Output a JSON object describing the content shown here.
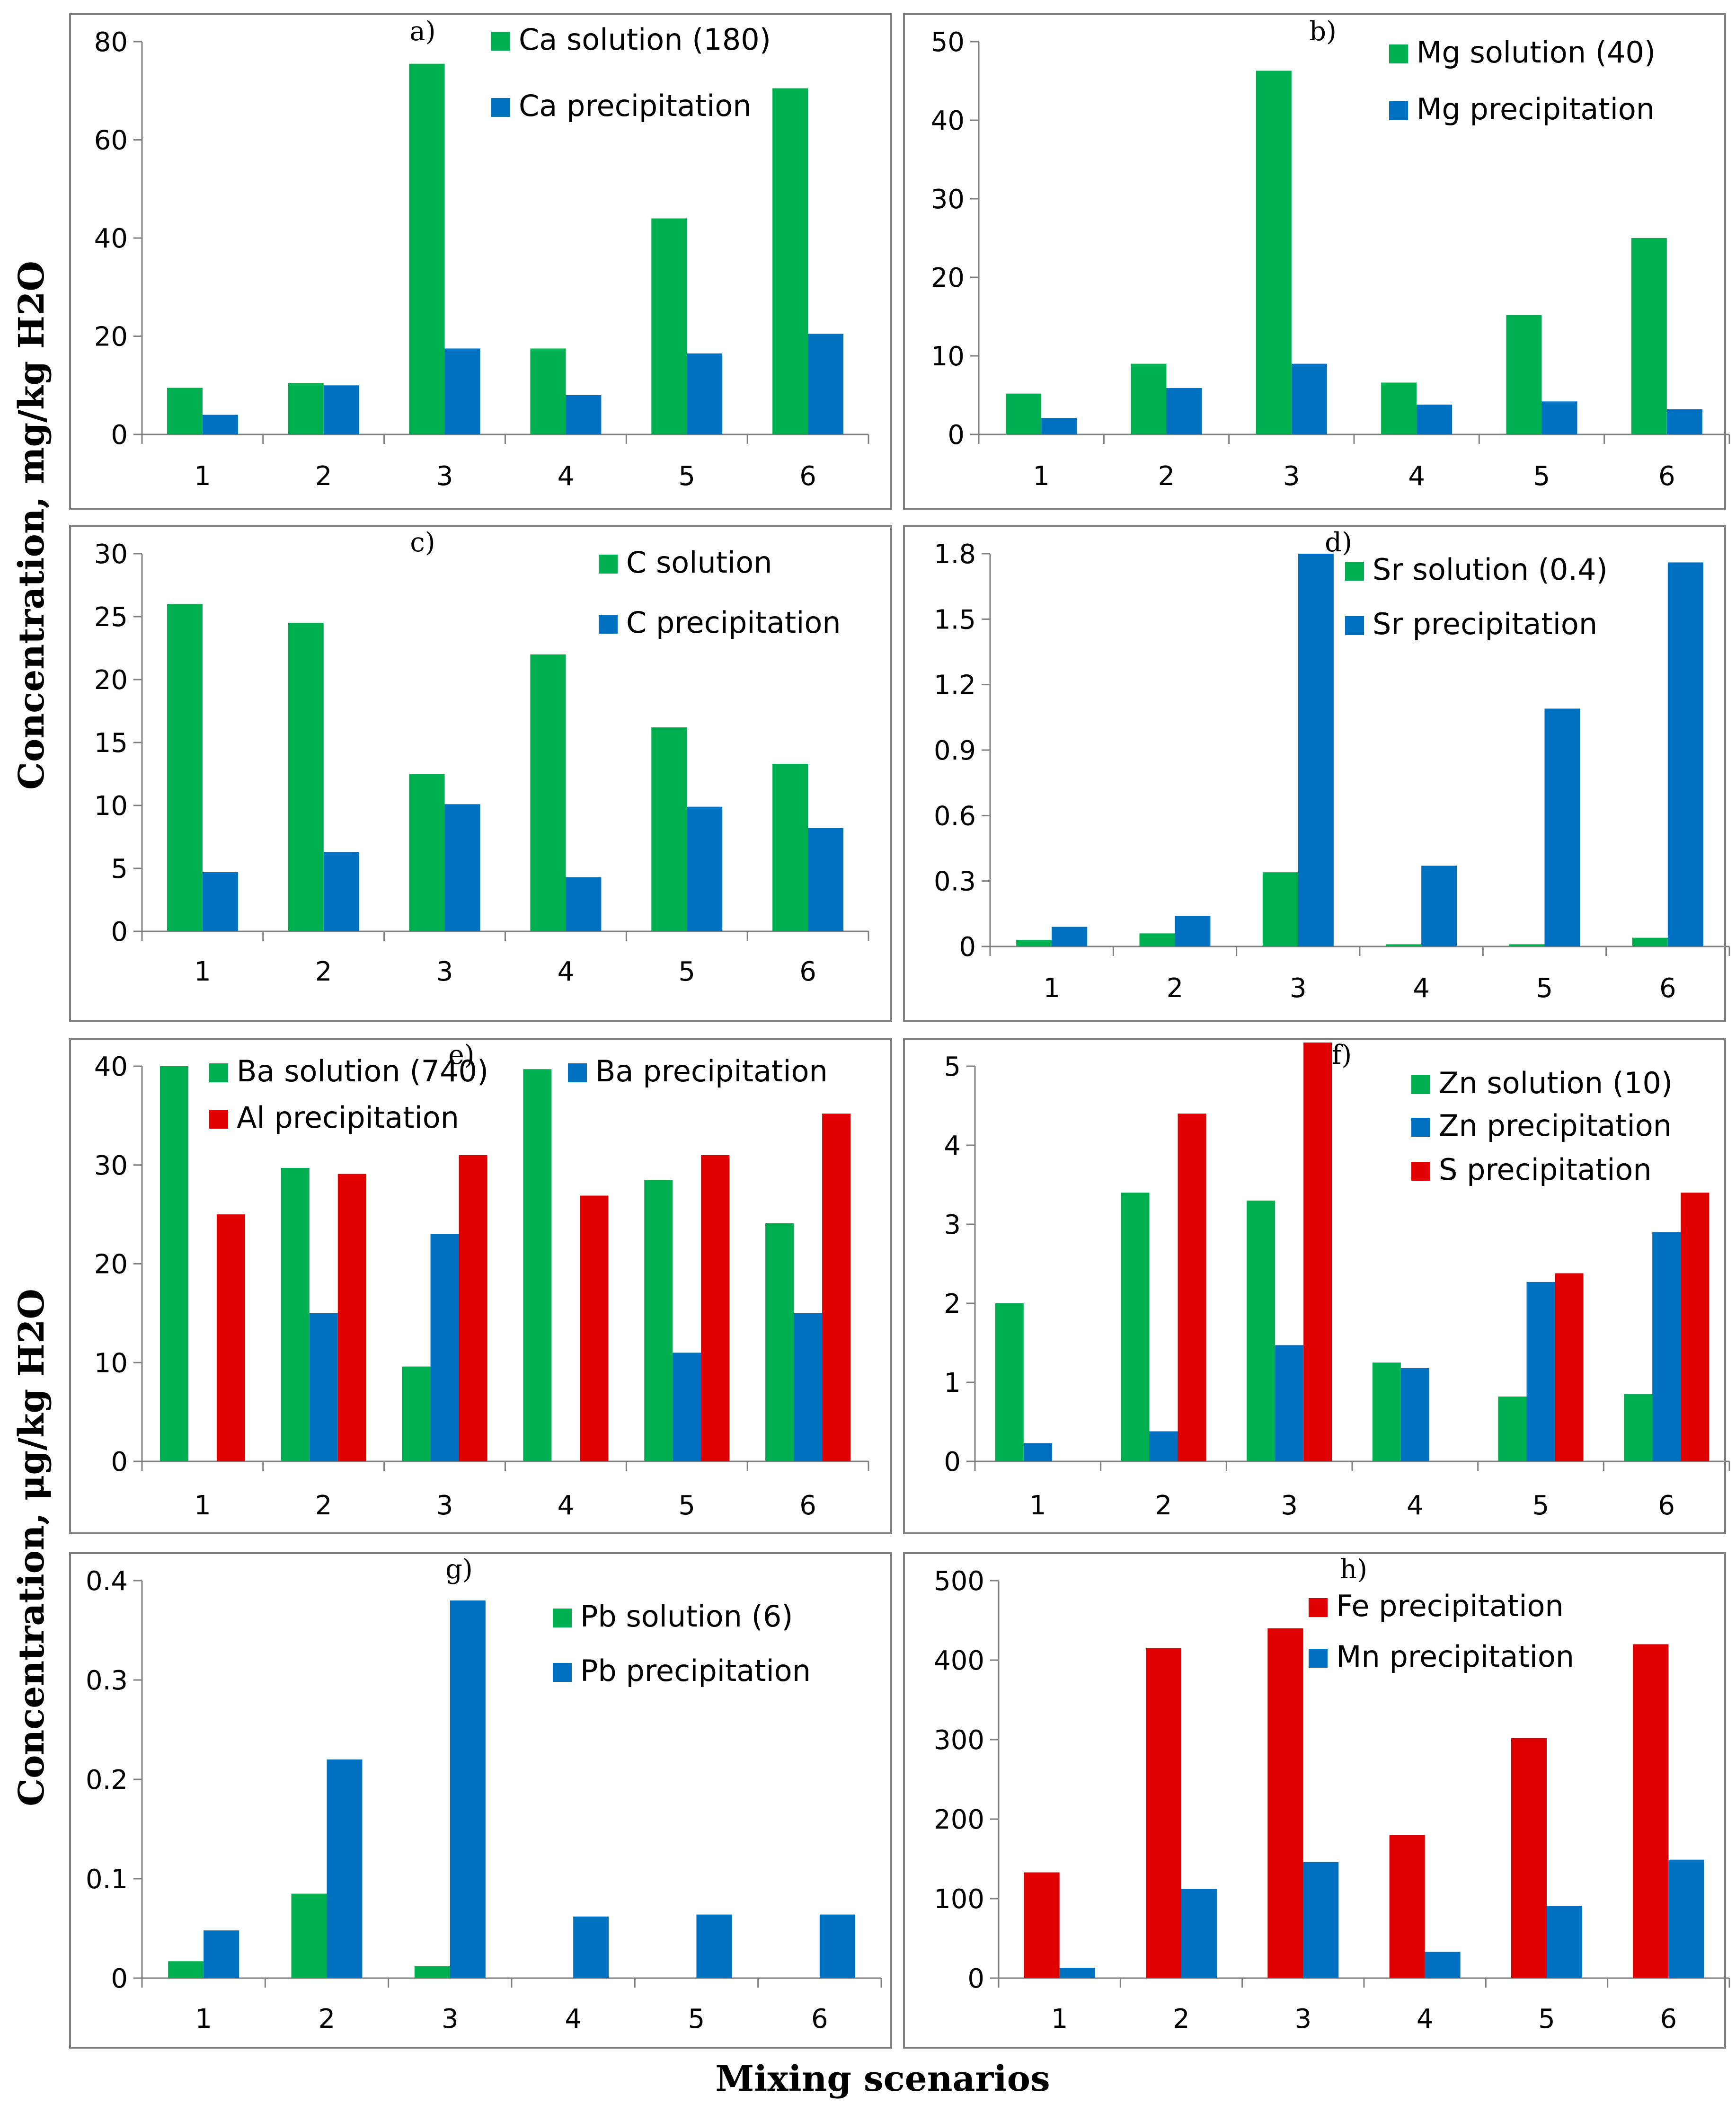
{
  "figure": {
    "ylabel_top": "Concentration, mg/kg H2O",
    "ylabel_bottom": "Concentration, μg/kg H2O",
    "xlabel": "Mixing scenarios"
  },
  "colors": {
    "green": "#00b050",
    "blue": "#0070c0",
    "red": "#e00000"
  },
  "chart_data": [
    {
      "id": "a",
      "letter": "a)",
      "type": "bar",
      "categories": [
        "1",
        "2",
        "3",
        "4",
        "5",
        "6"
      ],
      "ylim": [
        0,
        80
      ],
      "yticks": [
        "0",
        "20",
        "40",
        "60",
        "80"
      ],
      "series": [
        {
          "name": "Ca solution (180)",
          "color": "green",
          "values": [
            9.5,
            10.5,
            75.5,
            17.5,
            44,
            70.5
          ]
        },
        {
          "name": "Ca precipitation",
          "color": "blue",
          "values": [
            4,
            10,
            17.5,
            8,
            16.5,
            20.5
          ]
        }
      ]
    },
    {
      "id": "b",
      "letter": "b)",
      "type": "bar",
      "categories": [
        "1",
        "2",
        "3",
        "4",
        "5",
        "6"
      ],
      "ylim": [
        0,
        50
      ],
      "yticks": [
        "0",
        "10",
        "20",
        "30",
        "40",
        "50"
      ],
      "series": [
        {
          "name": "Mg solution (40)",
          "color": "green",
          "values": [
            5.2,
            9,
            46.3,
            6.6,
            15.2,
            25
          ]
        },
        {
          "name": "Mg precipitation",
          "color": "blue",
          "values": [
            2.1,
            5.9,
            9,
            3.8,
            4.2,
            3.2
          ]
        }
      ]
    },
    {
      "id": "c",
      "letter": "c)",
      "type": "bar",
      "categories": [
        "1",
        "2",
        "3",
        "4",
        "5",
        "6"
      ],
      "ylim": [
        0,
        30
      ],
      "yticks": [
        "0",
        "5",
        "10",
        "15",
        "20",
        "25",
        "30"
      ],
      "series": [
        {
          "name": "C solution",
          "color": "green",
          "values": [
            26,
            24.5,
            12.5,
            22,
            16.2,
            13.3
          ]
        },
        {
          "name": "C precipitation",
          "color": "blue",
          "values": [
            4.7,
            6.3,
            10.1,
            4.3,
            9.9,
            8.2
          ]
        }
      ]
    },
    {
      "id": "d",
      "letter": "d)",
      "type": "bar",
      "categories": [
        "1",
        "2",
        "3",
        "4",
        "5",
        "6"
      ],
      "ylim": [
        0,
        1.8
      ],
      "yticks": [
        "0",
        "0.3",
        "0.6",
        "0.9",
        "1.2",
        "1.5",
        "1.8"
      ],
      "series": [
        {
          "name": "Sr solution (0.4)",
          "color": "green",
          "values": [
            0.03,
            0.06,
            0.34,
            0.01,
            0.01,
            0.04
          ]
        },
        {
          "name": "Sr precipitation",
          "color": "blue",
          "values": [
            0.09,
            0.14,
            1.8,
            0.37,
            1.09,
            1.76
          ]
        }
      ]
    },
    {
      "id": "e",
      "letter": "e)",
      "type": "bar",
      "categories": [
        "1",
        "2",
        "3",
        "4",
        "5",
        "6"
      ],
      "ylim": [
        0,
        40
      ],
      "yticks": [
        "0",
        "10",
        "20",
        "30",
        "40"
      ],
      "series": [
        {
          "name": "Ba solution (740)",
          "color": "green",
          "values": [
            40,
            29.7,
            9.6,
            39.7,
            28.5,
            24.1
          ]
        },
        {
          "name": "Ba precipitation",
          "color": "blue",
          "values": [
            0,
            15,
            23,
            0,
            11,
            15
          ]
        },
        {
          "name": "Al precipitation",
          "color": "red",
          "values": [
            25,
            29.1,
            31,
            26.9,
            31,
            35.2
          ]
        }
      ]
    },
    {
      "id": "f",
      "letter": "f)",
      "type": "bar",
      "categories": [
        "1",
        "2",
        "3",
        "4",
        "5",
        "6"
      ],
      "ylim": [
        0,
        5
      ],
      "yticks": [
        "0",
        "1",
        "2",
        "3",
        "4",
        "5"
      ],
      "series": [
        {
          "name": "Zn solution (10)",
          "color": "green",
          "values": [
            2,
            3.4,
            3.3,
            1.25,
            0.82,
            0.85
          ]
        },
        {
          "name": "Zn precipitation",
          "color": "blue",
          "values": [
            0.23,
            0.38,
            1.47,
            1.18,
            2.27,
            2.9
          ]
        },
        {
          "name": "S precipitation",
          "color": "red",
          "values": [
            0,
            4.4,
            5.3,
            0,
            2.38,
            3.4
          ]
        }
      ]
    },
    {
      "id": "g",
      "letter": "g)",
      "type": "bar",
      "categories": [
        "1",
        "2",
        "3",
        "4",
        "5",
        "6"
      ],
      "ylim": [
        0,
        0.4
      ],
      "yticks": [
        "0",
        "0.1",
        "0.2",
        "0.3",
        "0.4"
      ],
      "series": [
        {
          "name": "Pb solution (6)",
          "color": "green",
          "values": [
            0.017,
            0.085,
            0.012,
            0,
            0,
            0
          ]
        },
        {
          "name": "Pb precipitation",
          "color": "blue",
          "values": [
            0.048,
            0.22,
            0.38,
            0.062,
            0.064,
            0.064
          ]
        }
      ]
    },
    {
      "id": "h",
      "letter": "h)",
      "type": "bar",
      "categories": [
        "1",
        "2",
        "3",
        "4",
        "5",
        "6"
      ],
      "ylim": [
        0,
        500
      ],
      "yticks": [
        "0",
        "100",
        "200",
        "300",
        "400",
        "500"
      ],
      "series": [
        {
          "name": "Fe precipitation",
          "color": "red",
          "values": [
            133,
            415,
            440,
            180,
            302,
            420
          ]
        },
        {
          "name": "Mn precipitation",
          "color": "blue",
          "values": [
            13,
            112,
            146,
            33,
            91,
            149
          ]
        }
      ]
    }
  ]
}
